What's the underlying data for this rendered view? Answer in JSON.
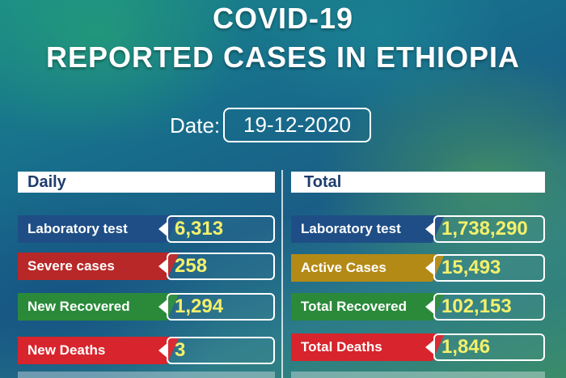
{
  "title": {
    "line1": "COVID-19",
    "line2": "REPORTED CASES IN ETHIOPIA"
  },
  "date": {
    "label": "Date:",
    "value": "19-12-2020"
  },
  "daily": {
    "header": "Daily",
    "rows": [
      {
        "label": "Laboratory test",
        "value": "6,313",
        "color": "#1f4e86"
      },
      {
        "label": "Severe cases",
        "value": "258",
        "color": "#b82828"
      },
      {
        "label": "New Recovered",
        "value": "1,294",
        "color": "#2a8a3a"
      },
      {
        "label": "New Deaths",
        "value": "3",
        "color": "#d8242c"
      }
    ]
  },
  "total": {
    "header": "Total",
    "rows": [
      {
        "label": "Laboratory test",
        "value": "1,738,290",
        "color": "#1f4e86"
      },
      {
        "label": "Active Cases",
        "value": "15,493",
        "color": "#b48a16"
      },
      {
        "label": "Total Recovered",
        "value": "102,153",
        "color": "#2a8a3a"
      },
      {
        "label": "Total Deaths",
        "value": "1,846",
        "color": "#d8242c"
      }
    ]
  },
  "value_color": "#f4f06a"
}
